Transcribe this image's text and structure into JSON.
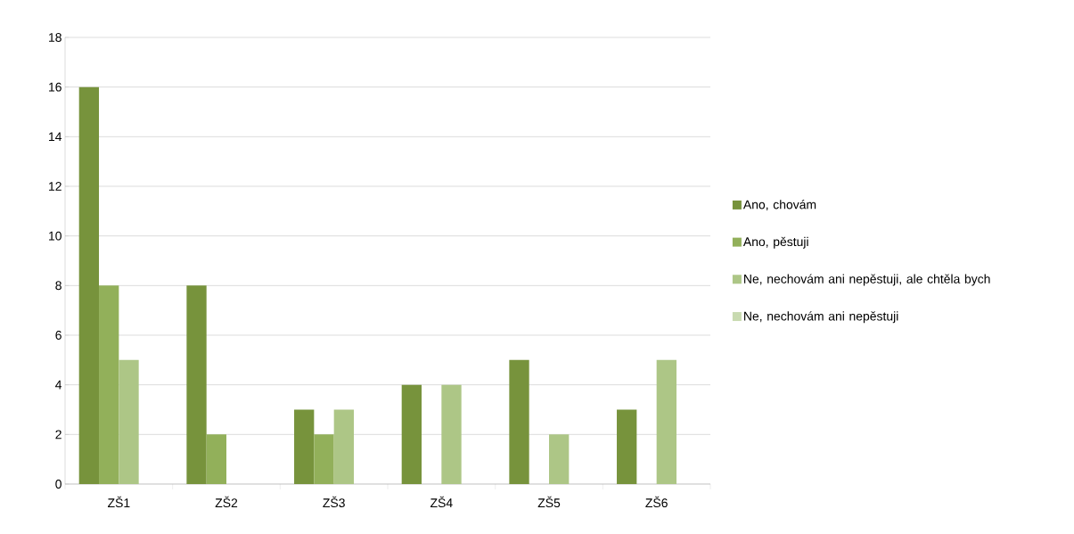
{
  "chart_data": {
    "type": "bar",
    "categories": [
      "ZŠ1",
      "ZŠ2",
      "ZŠ3",
      "ZŠ4",
      "ZŠ5",
      "ZŠ6"
    ],
    "series": [
      {
        "name": "Ano, chovám",
        "color": "#77933c",
        "values": [
          16,
          8,
          3,
          4,
          5,
          3
        ]
      },
      {
        "name": "Ano, pěstuji",
        "color": "#92b05a",
        "values": [
          8,
          2,
          2,
          0,
          0,
          0
        ]
      },
      {
        "name": "Ne, nechovám ani nepěstuji, ale chtěla bych",
        "color": "#adc686",
        "values": [
          5,
          0,
          3,
          4,
          2,
          5
        ]
      },
      {
        "name": "Ne, nechovám ani nepěstuji",
        "color": "#c8dab0",
        "values": [
          0,
          0,
          0,
          0,
          0,
          0
        ]
      }
    ],
    "ylim": [
      0,
      18
    ],
    "yticks": [
      0,
      2,
      4,
      6,
      8,
      10,
      12,
      14,
      16,
      18
    ],
    "grid": "y",
    "legend": "right"
  }
}
